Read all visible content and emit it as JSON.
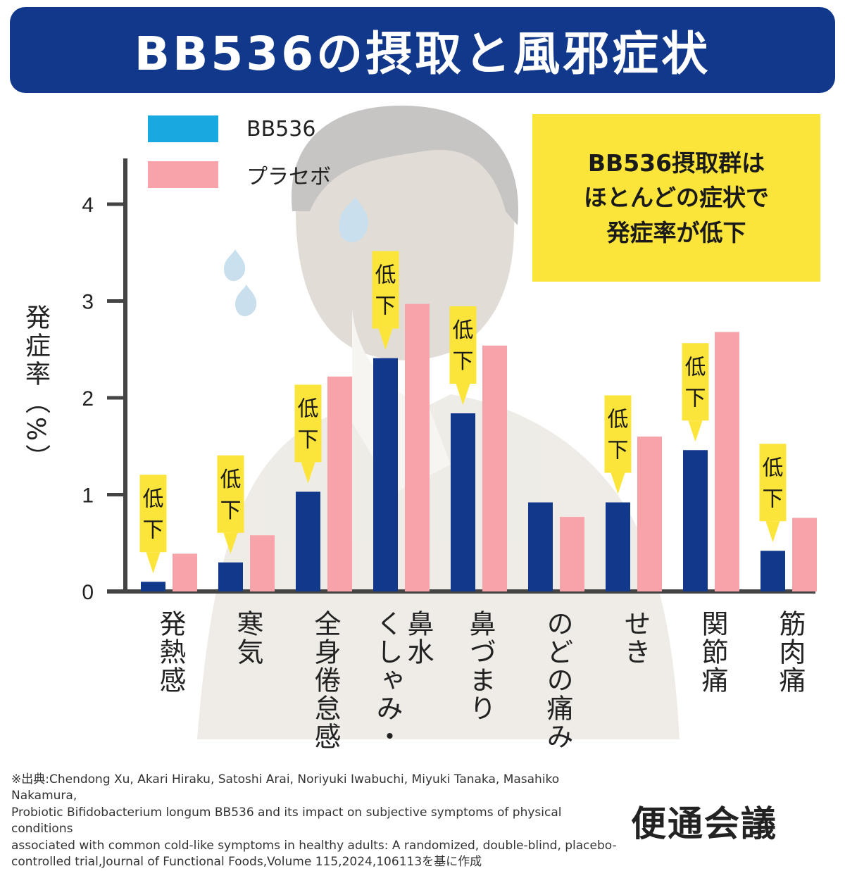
{
  "header": {
    "title": "BB536の摂取と風邪症状"
  },
  "callout": {
    "text": "BB536摂取群は\nほとんどの症状で\n発症率が低下"
  },
  "legend": [
    {
      "label": "BB536",
      "color": "#19a9e1"
    },
    {
      "label": "プラセボ",
      "color": "#f8a3a9"
    }
  ],
  "colors": {
    "bb536_bar": "#11388a",
    "placebo_bar": "#f8a3a9",
    "badge": "#fce53a",
    "axis": "#444444"
  },
  "badge_text": "低\n下",
  "chart_data": {
    "type": "bar",
    "ylabel": "発症率（%）",
    "ylim": [
      0,
      4.5
    ],
    "yticks": [
      0,
      1,
      2,
      3,
      4
    ],
    "categories": [
      "発熱感",
      "寒気",
      "全身倦怠感",
      "鼻水\nくしゃみ・",
      "鼻づまり",
      "のどの痛み",
      "せき",
      "関節痛",
      "筋肉痛"
    ],
    "series": [
      {
        "name": "BB536",
        "values": [
          0.1,
          0.3,
          1.03,
          2.41,
          1.84,
          0.92,
          0.92,
          1.46,
          0.42
        ]
      },
      {
        "name": "プラセボ",
        "values": [
          0.39,
          0.58,
          2.22,
          2.97,
          2.54,
          0.77,
          1.6,
          2.68,
          0.76
        ]
      }
    ],
    "lowered": [
      true,
      true,
      true,
      true,
      true,
      false,
      true,
      true,
      true
    ]
  },
  "footer": {
    "source": "※出典:Chendong Xu, Akari Hiraku, Satoshi Arai, Noriyuki Iwabuchi, Miyuki Tanaka, Masahiko Nakamura,\nProbiotic Bifidobacterium longum BB536 and its impact on subjective symptoms of physical conditions\nassociated with common cold-like symptoms in healthy adults: A randomized, double-blind, placebo-\ncontrolled trial,Journal of Functional Foods,Volume 115,2024,106113を基に作成",
    "brand": "便通会議"
  }
}
